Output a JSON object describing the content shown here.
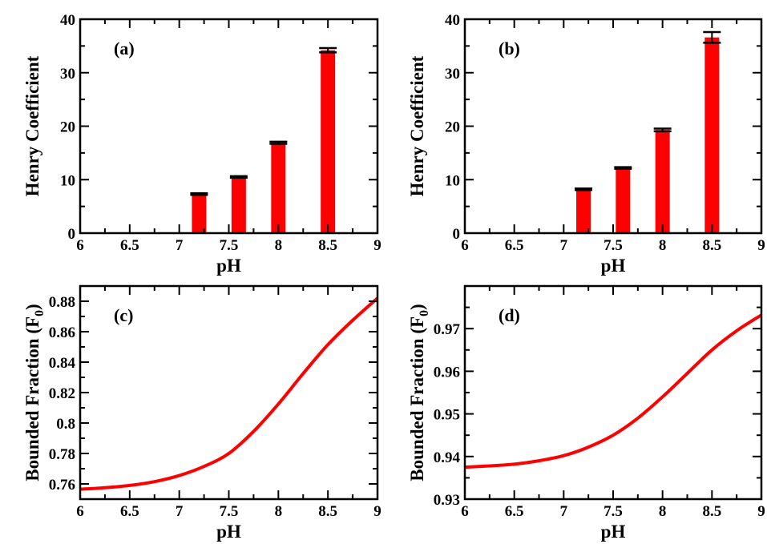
{
  "chart_data": [
    {
      "id": "a",
      "type": "bar",
      "panel_label": "(a)",
      "xlabel": "pH",
      "ylabel": "Henry Coefficient",
      "xlim": [
        6,
        9
      ],
      "ylim": [
        0,
        40
      ],
      "x_ticks": [
        "6",
        "6.5",
        "7",
        "7.5",
        "8",
        "8.5",
        "9"
      ],
      "y_ticks": [
        "0",
        "10",
        "20",
        "30",
        "40"
      ],
      "x": [
        7.2,
        7.6,
        8.0,
        8.5
      ],
      "values": [
        7.3,
        10.5,
        16.9,
        34.2
      ],
      "errors": [
        0.15,
        0.15,
        0.2,
        0.4
      ],
      "color": "#ff0000"
    },
    {
      "id": "b",
      "type": "bar",
      "panel_label": "(b)",
      "xlabel": "pH",
      "ylabel": "Henry Coefficient",
      "xlim": [
        6,
        9
      ],
      "ylim": [
        0,
        40
      ],
      "x_ticks": [
        "6",
        "6.5",
        "7",
        "7.5",
        "8",
        "8.5",
        "9"
      ],
      "y_ticks": [
        "0",
        "10",
        "20",
        "30",
        "40"
      ],
      "x": [
        7.2,
        7.6,
        8.0,
        8.5
      ],
      "values": [
        8.2,
        12.2,
        19.3,
        36.6
      ],
      "errors": [
        0.15,
        0.15,
        0.25,
        1.0
      ],
      "color": "#ff0000"
    },
    {
      "id": "c",
      "type": "line",
      "panel_label": "(c)",
      "xlabel": "pH",
      "ylabel": "Bounded Fraction (F",
      "ylabel_sub": "0",
      "ylabel_end": ")",
      "xlim": [
        6,
        9
      ],
      "ylim": [
        0.75,
        0.89
      ],
      "x_ticks": [
        "6",
        "6.5",
        "7",
        "7.5",
        "8",
        "8.5",
        "9"
      ],
      "y_ticks": [
        "0.76",
        "0.78",
        "0.8",
        "0.82",
        "0.84",
        "0.86",
        "0.88"
      ],
      "x": [
        6.0,
        6.25,
        6.5,
        6.75,
        7.0,
        7.25,
        7.5,
        7.75,
        8.0,
        8.25,
        8.5,
        8.75,
        9.0
      ],
      "values": [
        0.7565,
        0.7575,
        0.759,
        0.7615,
        0.7655,
        0.7715,
        0.78,
        0.7945,
        0.8125,
        0.8325,
        0.8515,
        0.8675,
        0.882
      ],
      "color": "#ff0000"
    },
    {
      "id": "d",
      "type": "line",
      "panel_label": "(d)",
      "xlabel": "pH",
      "ylabel": "Bounded Fraction (F",
      "ylabel_sub": "0",
      "ylabel_end": ")",
      "xlim": [
        6,
        9
      ],
      "ylim": [
        0.93,
        0.98
      ],
      "x_ticks": [
        "6",
        "6.5",
        "7",
        "7.5",
        "8",
        "8.5",
        "9"
      ],
      "y_ticks": [
        "0.93",
        "0.94",
        "0.95",
        "0.96",
        "0.97"
      ],
      "x": [
        6.0,
        6.25,
        6.5,
        6.75,
        7.0,
        7.25,
        7.5,
        7.75,
        8.0,
        8.25,
        8.5,
        8.75,
        9.0
      ],
      "values": [
        0.9375,
        0.9378,
        0.9382,
        0.939,
        0.9402,
        0.9422,
        0.945,
        0.949,
        0.954,
        0.9595,
        0.965,
        0.9695,
        0.9732
      ],
      "color": "#ff0000"
    }
  ]
}
